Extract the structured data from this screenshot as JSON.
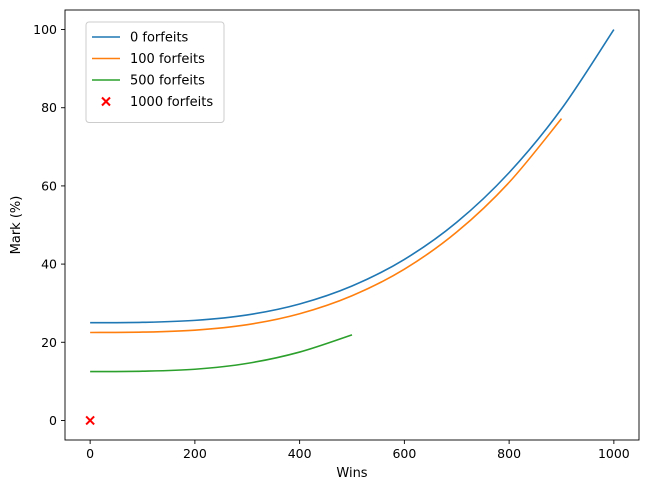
{
  "chart_data": {
    "type": "line",
    "xlabel": "Wins",
    "ylabel": "Mark (%)",
    "xlim": [
      -48,
      1048
    ],
    "ylim": [
      -5,
      105
    ],
    "xticks": [
      0,
      200,
      400,
      600,
      800,
      1000
    ],
    "yticks": [
      0,
      20,
      40,
      60,
      80,
      100
    ],
    "grid": false,
    "legend_position": "top-left",
    "series": [
      {
        "name": "0 forfeits",
        "color": "#1f77b4",
        "kind": "line",
        "x": [
          0,
          100,
          200,
          300,
          400,
          500,
          600,
          700,
          800,
          900,
          1000
        ],
        "y": [
          25.0,
          25.1,
          25.6,
          27.0,
          29.8,
          34.4,
          41.2,
          50.7,
          63.4,
          79.7,
          100.0
        ]
      },
      {
        "name": "100 forfeits",
        "color": "#ff7f0e",
        "kind": "line",
        "x": [
          0,
          100,
          200,
          300,
          400,
          500,
          600,
          700,
          800,
          900
        ],
        "y": [
          22.5,
          22.6,
          23.1,
          24.5,
          27.3,
          31.9,
          38.7,
          48.2,
          60.9,
          77.2
        ]
      },
      {
        "name": "500 forfeits",
        "color": "#2ca02c",
        "kind": "line",
        "x": [
          0,
          100,
          200,
          300,
          400,
          500
        ],
        "y": [
          12.5,
          12.6,
          13.1,
          14.6,
          17.5,
          21.9
        ]
      },
      {
        "name": "1000 forfeits",
        "color": "#ff0000",
        "kind": "marker",
        "marker": "x",
        "x": [
          0
        ],
        "y": [
          0
        ]
      }
    ]
  }
}
